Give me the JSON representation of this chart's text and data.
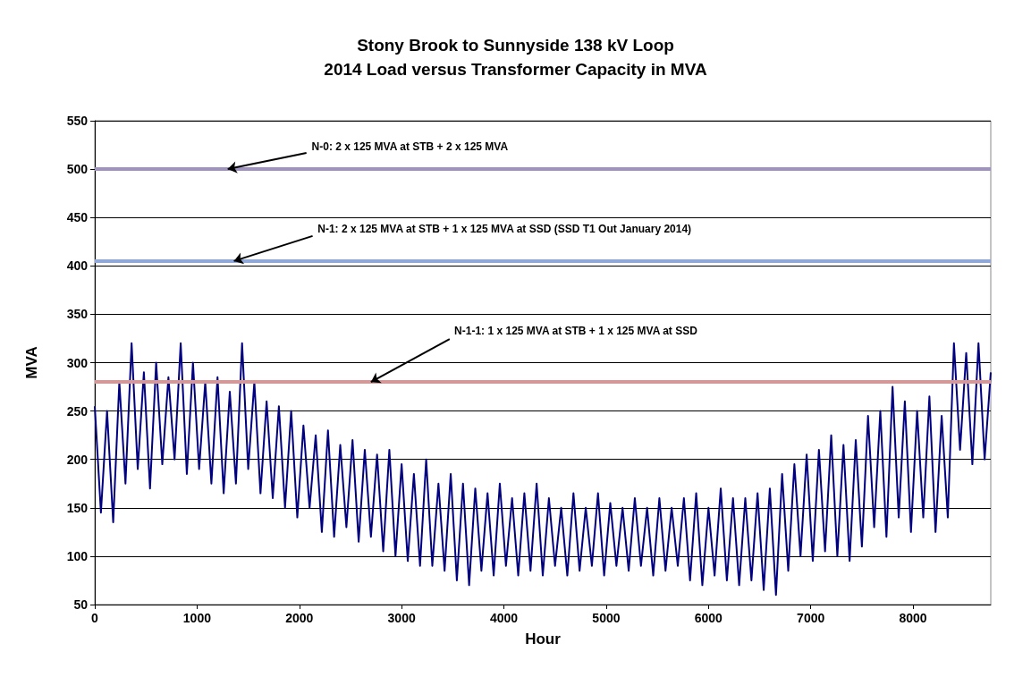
{
  "chart_data": {
    "type": "line",
    "title": "Stony Brook to Sunnyside 138 kV Loop",
    "subtitle": "2014 Load versus Transformer Capacity in MVA",
    "xlabel": "Hour",
    "ylabel": "MVA",
    "x": [
      0,
      60,
      120,
      180,
      240,
      300,
      360,
      420,
      480,
      540,
      600,
      660,
      720,
      780,
      840,
      900,
      960,
      1020,
      1080,
      1140,
      1200,
      1260,
      1320,
      1380,
      1440,
      1500,
      1560,
      1620,
      1680,
      1740,
      1800,
      1860,
      1920,
      1980,
      2040,
      2100,
      2160,
      2220,
      2280,
      2340,
      2400,
      2460,
      2520,
      2580,
      2640,
      2700,
      2760,
      2820,
      2880,
      2940,
      3000,
      3060,
      3120,
      3180,
      3240,
      3300,
      3360,
      3420,
      3480,
      3540,
      3600,
      3660,
      3720,
      3780,
      3840,
      3900,
      3960,
      4020,
      4080,
      4140,
      4200,
      4260,
      4320,
      4380,
      4440,
      4500,
      4560,
      4620,
      4680,
      4740,
      4800,
      4860,
      4920,
      4980,
      5040,
      5100,
      5160,
      5220,
      5280,
      5340,
      5400,
      5460,
      5520,
      5580,
      5640,
      5700,
      5760,
      5820,
      5880,
      5940,
      6000,
      6060,
      6120,
      6180,
      6240,
      6300,
      6360,
      6420,
      6480,
      6540,
      6600,
      6660,
      6720,
      6780,
      6840,
      6900,
      6960,
      7020,
      7080,
      7140,
      7200,
      7260,
      7320,
      7380,
      7440,
      7500,
      7560,
      7620,
      7680,
      7740,
      7800,
      7860,
      7920,
      7980,
      8040,
      8100,
      8160,
      8220,
      8280,
      8340,
      8400,
      8460,
      8520,
      8580,
      8640,
      8700,
      8760
    ],
    "series": [
      {
        "color": "#000080",
        "values": [
          255,
          145,
          250,
          135,
          280,
          175,
          320,
          190,
          290,
          170,
          300,
          195,
          285,
          200,
          320,
          185,
          300,
          190,
          280,
          175,
          285,
          165,
          270,
          175,
          320,
          190,
          280,
          165,
          260,
          160,
          255,
          150,
          250,
          140,
          235,
          150,
          225,
          125,
          230,
          120,
          215,
          130,
          220,
          115,
          210,
          120,
          205,
          105,
          210,
          100,
          195,
          95,
          185,
          90,
          200,
          90,
          175,
          85,
          185,
          75,
          175,
          70,
          170,
          85,
          165,
          80,
          175,
          90,
          160,
          80,
          165,
          85,
          175,
          80,
          160,
          90,
          150,
          80,
          165,
          85,
          150,
          90,
          165,
          80,
          155,
          90,
          150,
          85,
          160,
          90,
          150,
          80,
          160,
          85,
          150,
          90,
          160,
          75,
          165,
          70,
          150,
          80,
          170,
          75,
          160,
          70,
          160,
          75,
          165,
          65,
          170,
          60,
          185,
          85,
          195,
          100,
          205,
          95,
          210,
          105,
          225,
          100,
          215,
          95,
          220,
          110,
          245,
          130,
          250,
          120,
          275,
          140,
          260,
          125,
          250,
          140,
          265,
          125,
          245,
          140,
          320,
          210,
          310,
          195,
          320,
          200,
          290
        ]
      }
    ],
    "xlim": [
      0,
      8760
    ],
    "xticks": [
      0,
      1000,
      2000,
      3000,
      4000,
      5000,
      6000,
      7000,
      8000
    ],
    "ylim": [
      50,
      550
    ],
    "yticks": [
      50,
      100,
      150,
      200,
      250,
      300,
      350,
      400,
      450,
      500,
      550
    ],
    "grid": "y",
    "marker": "none",
    "line_style": "solid",
    "ref_lines": [
      {
        "axis": "y",
        "value": 500,
        "color": "#a092be"
      },
      {
        "axis": "y",
        "value": 405,
        "color": "#8fa8d8"
      },
      {
        "axis": "y",
        "value": 280,
        "color": "#d99694"
      }
    ],
    "annotations": [
      {
        "text": "N-0: 2 x 125 MVA at STB + 2 x 125 MVA",
        "x": 1300,
        "y": 500
      },
      {
        "text": "N-1: 2 x 125 MVA at STB + 1 x 125 MVA at SSD (SSD T1 Out January 2014)",
        "x": 1360,
        "y": 405
      },
      {
        "text": "N-1-1: 1 x 125 MVA at STB + 1 x 125 MVA at SSD",
        "x": 2700,
        "y": 280
      }
    ]
  }
}
